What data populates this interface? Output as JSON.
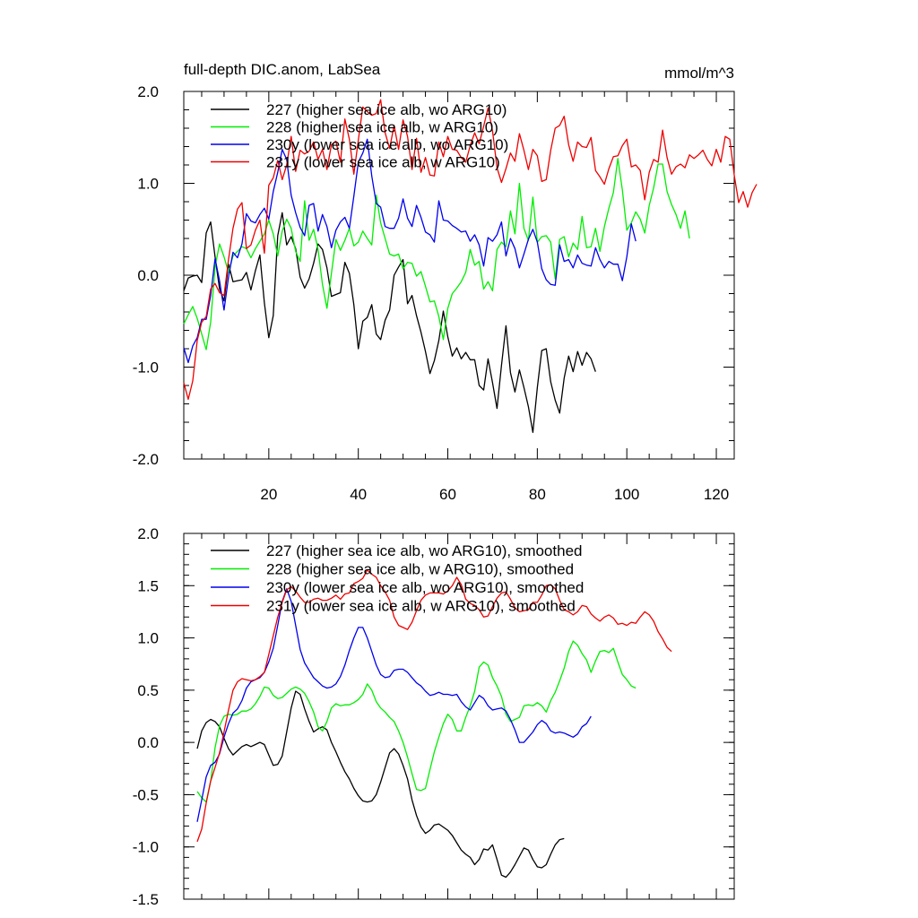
{
  "chart_data": [
    {
      "type": "line",
      "title": "full-depth DIC.anom, LabSea",
      "units": "mmol/m^3",
      "xlabel": "",
      "ylabel": "",
      "xlim": [
        1,
        124
      ],
      "ylim": [
        -2.0,
        2.0
      ],
      "x_ticks": [
        20,
        40,
        60,
        80,
        100,
        120
      ],
      "x_tick_labels": [
        "20",
        "40",
        "60",
        "80",
        "100",
        "120"
      ],
      "y_ticks": [
        -2.0,
        -1.0,
        0.0,
        1.0,
        2.0
      ],
      "y_tick_labels": [
        "-2.0",
        "-1.0",
        "0.0",
        "1.0",
        "2.0"
      ],
      "legend_position": "top-left",
      "series": [
        {
          "name": "227 (higher sea ice alb, wo ARG10)",
          "color": "#000000",
          "x_start": 1,
          "values": [
            -0.17,
            -0.03,
            -0.01,
            0.0,
            -0.08,
            0.46,
            0.58,
            0.2,
            -0.15,
            -0.28,
            0.12,
            -0.07,
            -0.06,
            -0.05,
            0.03,
            -0.16,
            0.05,
            0.22,
            -0.3,
            -0.68,
            -0.44,
            0.43,
            0.68,
            0.33,
            0.42,
            0.29,
            -0.02,
            -0.14,
            -0.04,
            0.13,
            0.34,
            0.28,
            0.08,
            -0.23,
            -0.21,
            -0.19,
            0.14,
            0.02,
            -0.32,
            -0.8,
            -0.5,
            -0.46,
            -0.32,
            -0.64,
            -0.7,
            -0.49,
            -0.38,
            -0.0,
            0.09,
            0.17,
            -0.31,
            -0.22,
            -0.44,
            -0.62,
            -0.83,
            -1.07,
            -0.93,
            -0.71,
            -0.39,
            -0.67,
            -0.88,
            -0.79,
            -0.91,
            -0.84,
            -0.92,
            -0.92,
            -1.2,
            -1.25,
            -0.91,
            -1.17,
            -1.45,
            -0.98,
            -0.55,
            -1.06,
            -1.27,
            -1.03,
            -1.22,
            -1.43,
            -1.71,
            -1.22,
            -0.82,
            -0.8,
            -1.16,
            -1.36,
            -1.5,
            -1.12,
            -0.88,
            -1.05,
            -0.83,
            -0.98,
            -0.84,
            -0.91,
            -1.05
          ]
        },
        {
          "name": "228 (higher sea ice alb, w ARG10)",
          "color": "#00ee00",
          "x_start": 1,
          "values": [
            -0.53,
            -0.43,
            -0.34,
            -0.47,
            -0.64,
            -0.81,
            -0.51,
            0.09,
            0.34,
            0.2,
            0.03,
            0.21,
            0.26,
            0.31,
            0.29,
            0.19,
            0.29,
            0.37,
            0.45,
            0.6,
            0.45,
            0.21,
            0.48,
            0.61,
            0.51,
            0.26,
            0.15,
            0.81,
            0.38,
            0.5,
            0.28,
            -0.1,
            -0.36,
            0.02,
            0.39,
            0.27,
            0.38,
            0.51,
            0.32,
            0.36,
            0.48,
            0.4,
            0.33,
            0.87,
            0.57,
            0.4,
            0.23,
            0.21,
            0.23,
            0.07,
            0.14,
            0.13,
            -0.01,
            0.04,
            -0.12,
            -0.29,
            -0.28,
            -0.45,
            -0.7,
            -0.36,
            -0.2,
            -0.14,
            -0.07,
            0.03,
            0.28,
            0.11,
            0.15,
            -0.15,
            -0.07,
            -0.17,
            0.28,
            0.36,
            0.31,
            0.7,
            0.45,
            1.0,
            0.51,
            0.38,
            0.85,
            0.36,
            0.42,
            0.43,
            0.36,
            -0.04,
            0.39,
            0.42,
            0.2,
            0.35,
            0.28,
            0.64,
            0.3,
            0.31,
            0.51,
            0.26,
            0.53,
            0.73,
            0.9,
            1.27,
            0.93,
            0.49,
            0.57,
            0.69,
            0.61,
            0.46,
            0.76,
            0.95,
            1.21,
            1.21,
            0.91,
            0.77,
            0.66,
            0.51,
            0.7,
            0.4
          ]
        },
        {
          "name": "230y (lower sea ice alb, wo ARG10)",
          "color": "#0000ee",
          "x_start": 1,
          "values": [
            -0.79,
            -0.95,
            -0.77,
            -0.68,
            -0.48,
            -0.48,
            -0.22,
            0.18,
            -0.06,
            -0.38,
            -0.02,
            0.25,
            0.19,
            0.34,
            0.67,
            0.59,
            0.57,
            0.66,
            0.73,
            0.61,
            0.91,
            1.12,
            1.37,
            1.26,
            0.87,
            0.68,
            0.52,
            0.43,
            0.76,
            0.78,
            0.48,
            0.66,
            0.53,
            0.3,
            0.49,
            0.58,
            0.63,
            0.51,
            0.86,
            1.23,
            1.33,
            1.48,
            1.08,
            0.78,
            0.74,
            0.53,
            0.51,
            0.51,
            0.62,
            0.83,
            0.62,
            0.53,
            0.76,
            0.63,
            0.47,
            0.44,
            0.36,
            0.81,
            0.6,
            0.59,
            0.54,
            0.51,
            0.47,
            0.48,
            0.37,
            0.44,
            0.33,
            0.1,
            0.41,
            0.37,
            0.44,
            0.58,
            0.21,
            0.4,
            0.29,
            0.08,
            0.23,
            0.39,
            0.5,
            0.36,
            0.07,
            -0.05,
            -0.1,
            -0.11,
            0.33,
            0.15,
            0.17,
            0.08,
            0.22,
            0.13,
            0.11,
            0.1,
            0.3,
            0.17,
            0.08,
            0.15,
            0.12,
            0.12,
            -0.06,
            0.2,
            0.56,
            0.37
          ]
        },
        {
          "name": "231y (lower sea ice alb, w ARG10)",
          "color": "#ee0000",
          "x_start": 1,
          "values": [
            -1.17,
            -1.35,
            -1.15,
            -0.71,
            -0.51,
            -0.45,
            -0.15,
            -0.09,
            -0.19,
            -0.22,
            0.17,
            0.51,
            0.72,
            0.79,
            0.29,
            0.33,
            0.49,
            0.6,
            0.24,
            0.98,
            1.06,
            1.25,
            1.04,
            1.2,
            1.51,
            1.13,
            1.36,
            1.32,
            1.35,
            1.45,
            1.26,
            1.37,
            1.15,
            1.42,
            1.46,
            1.23,
            1.7,
            1.48,
            1.1,
            1.47,
            1.83,
            1.78,
            1.74,
            1.76,
            1.91,
            1.55,
            1.38,
            1.63,
            1.37,
            1.69,
            1.51,
            1.15,
            1.49,
            1.12,
            1.28,
            1.09,
            1.08,
            1.45,
            1.29,
            1.51,
            1.37,
            1.36,
            1.28,
            1.23,
            1.41,
            1.55,
            1.43,
            1.62,
            1.82,
            1.57,
            1.17,
            1.01,
            1.16,
            1.33,
            1.24,
            1.54,
            1.36,
            1.15,
            1.37,
            1.3,
            1.02,
            1.04,
            1.36,
            1.6,
            1.63,
            1.73,
            1.42,
            1.24,
            1.45,
            1.4,
            1.39,
            1.5,
            1.14,
            1.07,
            0.99,
            1.16,
            1.29,
            1.3,
            1.41,
            1.48,
            1.18,
            1.2,
            1.14,
            0.82,
            1.12,
            1.26,
            1.23,
            1.58,
            1.28,
            1.1,
            1.18,
            1.21,
            1.17,
            1.31,
            1.27,
            1.31,
            1.36,
            1.26,
            1.19,
            1.37,
            1.23,
            1.51,
            1.48,
            1.09,
            0.79,
            0.91,
            0.74,
            0.9,
            0.99
          ]
        }
      ]
    },
    {
      "type": "line",
      "title": "",
      "xlabel": "",
      "ylabel": "",
      "xlim": [
        1,
        124
      ],
      "ylim": [
        -1.5,
        2.0
      ],
      "x_ticks": [
        20,
        40,
        60,
        80,
        100,
        120
      ],
      "x_tick_labels": [],
      "y_ticks": [
        -1.5,
        -1.0,
        -0.5,
        0.0,
        0.5,
        1.0,
        1.5,
        2.0
      ],
      "y_tick_labels": [
        "-1.5",
        "-1.0",
        "-0.5",
        "0.0",
        "0.5",
        "1.0",
        "1.5",
        "2.0"
      ],
      "legend_position": "top-left",
      "series": [
        {
          "name": "227 (higher sea ice alb, wo ARG10), smoothed",
          "color": "#000000",
          "x_start": 4,
          "values": [
            -0.06,
            0.11,
            0.19,
            0.22,
            0.2,
            0.15,
            0.04,
            -0.06,
            -0.12,
            -0.08,
            -0.04,
            -0.02,
            -0.04,
            -0.02,
            0.0,
            -0.02,
            -0.12,
            -0.22,
            -0.21,
            -0.13,
            0.1,
            0.33,
            0.49,
            0.46,
            0.32,
            0.2,
            0.1,
            0.13,
            0.15,
            0.12,
            0.0,
            -0.09,
            -0.19,
            -0.28,
            -0.35,
            -0.44,
            -0.51,
            -0.56,
            -0.57,
            -0.56,
            -0.5,
            -0.38,
            -0.24,
            -0.1,
            -0.06,
            -0.11,
            -0.22,
            -0.35,
            -0.55,
            -0.7,
            -0.81,
            -0.87,
            -0.84,
            -0.79,
            -0.78,
            -0.81,
            -0.84,
            -0.89,
            -0.96,
            -1.03,
            -1.07,
            -1.1,
            -1.17,
            -1.12,
            -1.02,
            -1.03,
            -0.98,
            -1.12,
            -1.27,
            -1.29,
            -1.24,
            -1.17,
            -1.09,
            -1.01,
            -1.03,
            -1.12,
            -1.19,
            -1.2,
            -1.17,
            -1.07,
            -0.98,
            -0.93,
            -0.92
          ]
        },
        {
          "name": "228 (higher sea ice alb, w ARG10), smoothed",
          "color": "#00ee00",
          "x_start": 4,
          "values": [
            -0.47,
            -0.53,
            -0.57,
            -0.37,
            -0.05,
            0.16,
            0.25,
            0.27,
            0.26,
            0.27,
            0.3,
            0.3,
            0.32,
            0.37,
            0.44,
            0.53,
            0.52,
            0.45,
            0.42,
            0.43,
            0.47,
            0.51,
            0.53,
            0.51,
            0.47,
            0.39,
            0.29,
            0.15,
            0.11,
            0.2,
            0.33,
            0.37,
            0.35,
            0.36,
            0.36,
            0.38,
            0.41,
            0.46,
            0.56,
            0.5,
            0.39,
            0.33,
            0.29,
            0.24,
            0.2,
            0.11,
            0.0,
            -0.14,
            -0.3,
            -0.45,
            -0.46,
            -0.44,
            -0.26,
            -0.09,
            0.05,
            0.18,
            0.27,
            0.22,
            0.11,
            0.11,
            0.24,
            0.35,
            0.49,
            0.72,
            0.77,
            0.74,
            0.62,
            0.54,
            0.44,
            0.27,
            0.2,
            0.22,
            0.24,
            0.35,
            0.36,
            0.35,
            0.38,
            0.35,
            0.29,
            0.4,
            0.48,
            0.59,
            0.71,
            0.87,
            0.97,
            0.93,
            0.85,
            0.79,
            0.67,
            0.78,
            0.87,
            0.88,
            0.86,
            0.9,
            0.77,
            0.65,
            0.6,
            0.54,
            0.52
          ]
        },
        {
          "name": "230y (lower sea ice alb, wo ARG10), smoothed",
          "color": "#0000ee",
          "x_start": 4,
          "values": [
            -0.76,
            -0.55,
            -0.33,
            -0.22,
            -0.19,
            -0.11,
            0.05,
            0.18,
            0.28,
            0.32,
            0.4,
            0.52,
            0.58,
            0.6,
            0.62,
            0.67,
            0.77,
            0.9,
            1.12,
            1.35,
            1.47,
            1.35,
            1.12,
            0.89,
            0.76,
            0.69,
            0.62,
            0.58,
            0.54,
            0.52,
            0.53,
            0.56,
            0.63,
            0.74,
            0.88,
            1.0,
            1.1,
            1.1,
            1.0,
            0.87,
            0.74,
            0.65,
            0.62,
            0.63,
            0.69,
            0.7,
            0.7,
            0.67,
            0.62,
            0.57,
            0.54,
            0.49,
            0.45,
            0.46,
            0.48,
            0.46,
            0.46,
            0.45,
            0.46,
            0.39,
            0.34,
            0.31,
            0.38,
            0.45,
            0.42,
            0.35,
            0.31,
            0.32,
            0.33,
            0.3,
            0.22,
            0.12,
            0.0,
            0.0,
            0.05,
            0.1,
            0.17,
            0.21,
            0.18,
            0.11,
            0.09,
            0.1,
            0.09,
            0.07,
            0.05,
            0.08,
            0.15,
            0.18,
            0.25
          ]
        },
        {
          "name": "231y (lower sea ice alb, w ARG10), smoothed",
          "color": "#ee0000",
          "x_start": 4,
          "values": [
            -0.95,
            -0.83,
            -0.58,
            -0.37,
            -0.24,
            -0.1,
            0.1,
            0.31,
            0.5,
            0.58,
            0.61,
            0.6,
            0.59,
            0.6,
            0.63,
            0.67,
            0.84,
            1.02,
            1.2,
            1.34,
            1.46,
            1.49,
            1.45,
            1.39,
            1.34,
            1.34,
            1.37,
            1.38,
            1.36,
            1.36,
            1.38,
            1.41,
            1.37,
            1.42,
            1.43,
            1.52,
            1.54,
            1.57,
            1.65,
            1.61,
            1.58,
            1.5,
            1.44,
            1.36,
            1.2,
            1.12,
            1.1,
            1.08,
            1.15,
            1.26,
            1.36,
            1.41,
            1.43,
            1.43,
            1.43,
            1.42,
            1.45,
            1.5,
            1.58,
            1.51,
            1.37,
            1.33,
            1.31,
            1.27,
            1.2,
            1.21,
            1.3,
            1.38,
            1.43,
            1.44,
            1.37,
            1.29,
            1.25,
            1.26,
            1.27,
            1.34,
            1.34,
            1.41,
            1.5,
            1.51,
            1.47,
            1.36,
            1.27,
            1.25,
            1.22,
            1.25,
            1.31,
            1.3,
            1.23,
            1.19,
            1.16,
            1.2,
            1.22,
            1.19,
            1.13,
            1.14,
            1.12,
            1.15,
            1.14,
            1.2,
            1.25,
            1.22,
            1.16,
            1.06,
            0.99,
            0.91,
            0.87
          ]
        }
      ]
    }
  ]
}
